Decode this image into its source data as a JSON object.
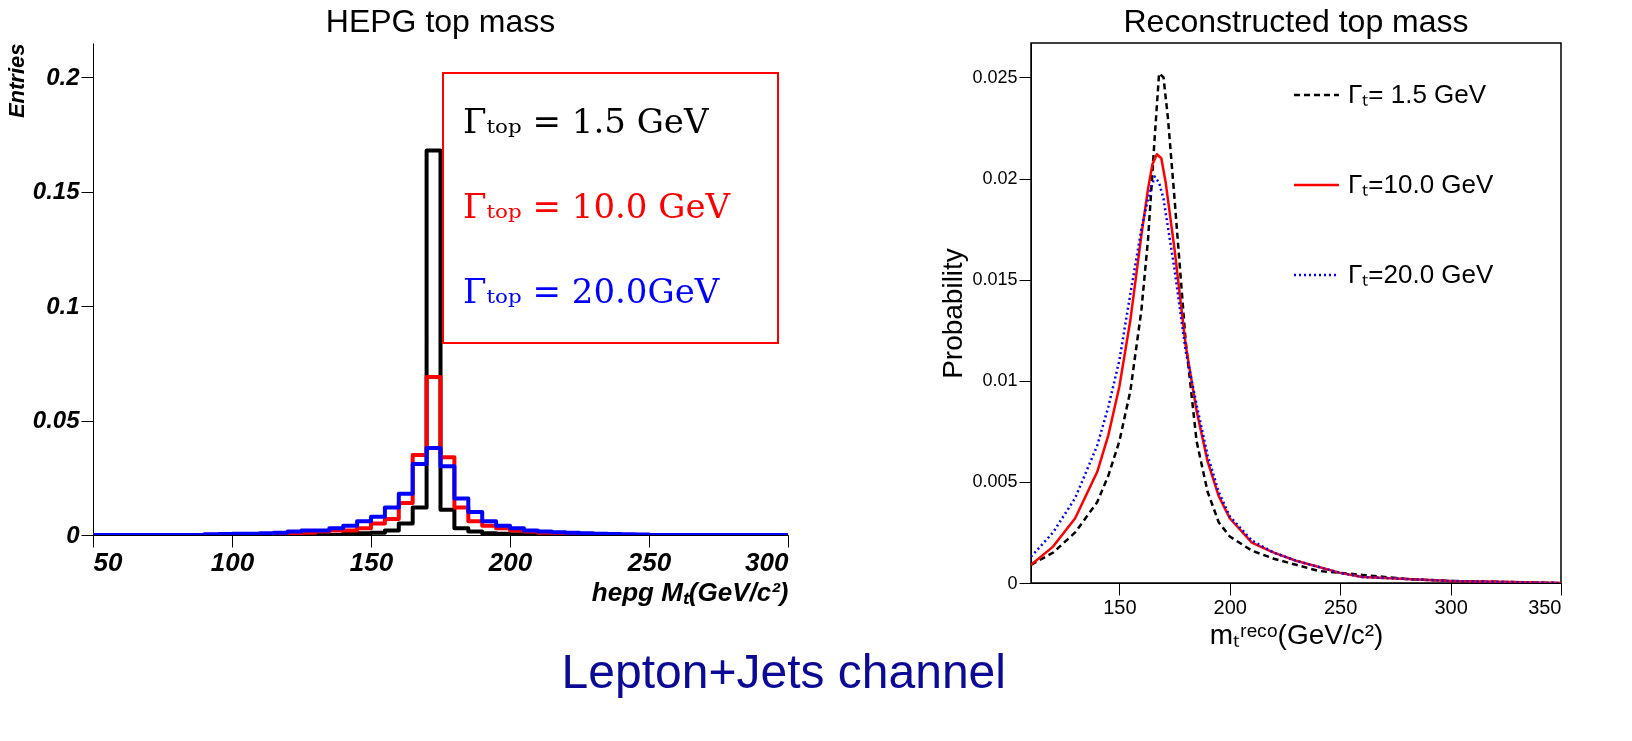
{
  "chart_data": [
    {
      "type": "histogram",
      "title": "HEPG top mass",
      "xlabel": "hepg Mₜ(GeV/c²)",
      "ylabel": "Entries",
      "bins": [
        50,
        55,
        60,
        65,
        70,
        75,
        80,
        85,
        90,
        95,
        100,
        105,
        110,
        115,
        120,
        125,
        130,
        135,
        140,
        145,
        150,
        155,
        160,
        165,
        170,
        175,
        180,
        185,
        190,
        195,
        200,
        205,
        210,
        215,
        220,
        225,
        230,
        235,
        240,
        245,
        250,
        255,
        260,
        265,
        270,
        275,
        280,
        285,
        290,
        295,
        300
      ],
      "series": [
        {
          "name": "Γₜₒₚ  = 1.5 GeV",
          "color": "#000000",
          "values": [
            0,
            0,
            0,
            0,
            0,
            0,
            0,
            0,
            0,
            0,
            0,
            0,
            0,
            0,
            0,
            0,
            0,
            0,
            0.0005,
            0.0008,
            0.001,
            0.002,
            0.005,
            0.012,
            0.168,
            0.011,
            0.003,
            0.0015,
            0.0008,
            0.0005,
            0.0003,
            0,
            0,
            0,
            0,
            0,
            0,
            0,
            0,
            0,
            0,
            0,
            0,
            0,
            0,
            0,
            0,
            0,
            0,
            0
          ]
        },
        {
          "name": "Γₜₒₚ  = 10.0 GeV",
          "color": "#ff0000",
          "values": [
            0,
            0,
            0,
            0,
            0,
            0,
            0,
            0,
            0,
            0,
            0,
            0,
            0.0003,
            0.0005,
            0.0008,
            0.001,
            0.0015,
            0.002,
            0.002,
            0.003,
            0.005,
            0.007,
            0.014,
            0.035,
            0.069,
            0.034,
            0.012,
            0.006,
            0.004,
            0.003,
            0.002,
            0.0015,
            0.001,
            0.0008,
            0.0005,
            0.0003,
            0,
            0,
            0,
            0,
            0,
            0,
            0,
            0,
            0,
            0,
            0,
            0,
            0,
            0
          ]
        },
        {
          "name": "Γₜₒₚ  = 20.0GeV",
          "color": "#0000ff",
          "values": [
            0,
            0,
            0,
            0,
            0,
            0,
            0,
            0,
            0.0003,
            0.0004,
            0.0005,
            0.0006,
            0.0008,
            0.001,
            0.0015,
            0.002,
            0.002,
            0.003,
            0.004,
            0.006,
            0.008,
            0.012,
            0.018,
            0.031,
            0.038,
            0.03,
            0.016,
            0.01,
            0.006,
            0.004,
            0.003,
            0.002,
            0.0015,
            0.0012,
            0.001,
            0.0008,
            0.0006,
            0.0004,
            0.0003,
            0.0002,
            0,
            0,
            0,
            0,
            0,
            0,
            0,
            0,
            0,
            0
          ]
        }
      ],
      "xlim": [
        50,
        300
      ],
      "xticks": [
        50,
        100,
        150,
        200,
        250,
        300
      ],
      "ylim": [
        0,
        0.215
      ],
      "yticks": [
        0,
        0.05,
        0.1,
        0.15,
        0.2
      ],
      "legend": "top right",
      "grid": false,
      "line_style": "solid",
      "annotations": [
        "Lepton+Jets channel"
      ]
    },
    {
      "type": "line",
      "title": "Reconstructed top mass",
      "xlabel": "mₜʳᵉᶜᵒ(GeV/c²)",
      "ylabel": "Probability",
      "series": [
        {
          "name": "Γₜ= 1.5 GeV",
          "color": "#000000",
          "line_style": "dashed",
          "x": [
            110,
            120,
            130,
            140,
            145,
            150,
            155,
            160,
            163,
            166,
            168,
            170,
            172,
            175,
            180,
            185,
            190,
            195,
            200,
            210,
            220,
            230,
            240,
            250,
            260,
            280,
            300,
            350
          ],
          "values": [
            0.0009,
            0.0015,
            0.0025,
            0.004,
            0.0053,
            0.007,
            0.0095,
            0.0135,
            0.017,
            0.022,
            0.0252,
            0.025,
            0.023,
            0.019,
            0.012,
            0.007,
            0.0045,
            0.003,
            0.0023,
            0.0016,
            0.0012,
            0.0009,
            0.0006,
            0.0005,
            0.0004,
            0.0002,
            0.0001,
            0
          ]
        },
        {
          "name": "Γₜ=10.0 GeV",
          "color": "#ff0000",
          "line_style": "solid",
          "x": [
            110,
            120,
            130,
            140,
            145,
            150,
            155,
            160,
            163,
            165,
            167,
            169,
            171,
            175,
            180,
            185,
            190,
            195,
            200,
            210,
            220,
            230,
            240,
            250,
            260,
            280,
            300,
            350
          ],
          "values": [
            0.0009,
            0.0018,
            0.0032,
            0.0055,
            0.0073,
            0.0097,
            0.013,
            0.0172,
            0.0195,
            0.0207,
            0.0212,
            0.021,
            0.0198,
            0.0165,
            0.0118,
            0.0085,
            0.006,
            0.0043,
            0.0032,
            0.002,
            0.0015,
            0.0011,
            0.0008,
            0.0005,
            0.0003,
            0.0002,
            0.0001,
            0
          ]
        },
        {
          "name": "Γₜ=20.0 GeV",
          "color": "#0000ff",
          "line_style": "dotted",
          "x": [
            110,
            120,
            130,
            140,
            145,
            150,
            155,
            160,
            163,
            166,
            168,
            170,
            175,
            180,
            185,
            190,
            195,
            200,
            210,
            220,
            230,
            240,
            250,
            260,
            280,
            300,
            350
          ],
          "values": [
            0.0013,
            0.0025,
            0.0042,
            0.0068,
            0.0087,
            0.011,
            0.0143,
            0.0175,
            0.019,
            0.0201,
            0.0198,
            0.019,
            0.0155,
            0.0115,
            0.0088,
            0.0063,
            0.0045,
            0.0033,
            0.0021,
            0.0015,
            0.0011,
            0.0008,
            0.0005,
            0.0003,
            0.0002,
            0.0001,
            0
          ]
        }
      ],
      "xlim": [
        110,
        350
      ],
      "xticks": [
        150,
        200,
        250,
        300,
        350
      ],
      "ylim": [
        0,
        0.0267
      ],
      "yticks": [
        0,
        0.005,
        0.01,
        0.015,
        0.02,
        0.025
      ],
      "legend": "top right",
      "grid": false
    }
  ]
}
